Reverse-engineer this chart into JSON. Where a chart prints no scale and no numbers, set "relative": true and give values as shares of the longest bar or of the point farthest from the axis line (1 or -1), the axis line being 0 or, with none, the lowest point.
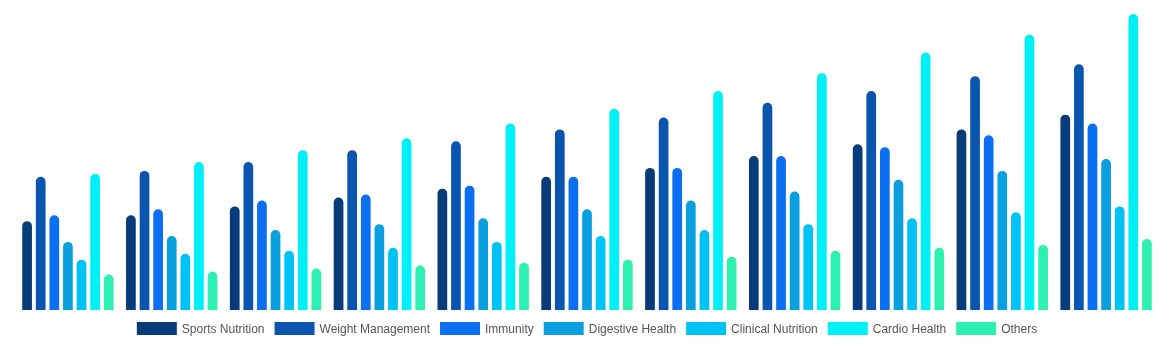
{
  "chart_data": {
    "type": "bar",
    "relative": true,
    "categories": [
      null,
      null,
      null,
      null,
      null,
      null,
      null,
      null,
      null,
      null,
      null
    ],
    "legend": "bottom",
    "series": [
      {
        "name": "Sports Nutrition",
        "color": "#073b7a",
        "values": [
          0.3,
          0.32,
          0.35,
          0.38,
          0.41,
          0.45,
          0.48,
          0.52,
          0.56,
          0.61,
          0.66
        ]
      },
      {
        "name": "Weight Management",
        "color": "#0a55ad",
        "values": [
          0.45,
          0.47,
          0.5,
          0.54,
          0.57,
          0.61,
          0.65,
          0.7,
          0.74,
          0.79,
          0.83
        ]
      },
      {
        "name": "Immunity",
        "color": "#0a6ff0",
        "values": [
          0.32,
          0.34,
          0.37,
          0.39,
          0.42,
          0.45,
          0.48,
          0.52,
          0.55,
          0.59,
          0.63
        ]
      },
      {
        "name": "Digestive Health",
        "color": "#0aa0e0",
        "values": [
          0.23,
          0.25,
          0.27,
          0.29,
          0.31,
          0.34,
          0.37,
          0.4,
          0.44,
          0.47,
          0.51
        ]
      },
      {
        "name": "Clinical Nutrition",
        "color": "#00c3f5",
        "values": [
          0.17,
          0.19,
          0.2,
          0.21,
          0.23,
          0.25,
          0.27,
          0.29,
          0.31,
          0.33,
          0.35
        ]
      },
      {
        "name": "Cardio Health",
        "color": "#00f0f8",
        "values": [
          0.46,
          0.5,
          0.54,
          0.58,
          0.63,
          0.68,
          0.74,
          0.8,
          0.87,
          0.93,
          1
        ]
      },
      {
        "name": "Others",
        "color": "#2ef0b0",
        "values": [
          0.12,
          0.13,
          0.14,
          0.15,
          0.16,
          0.17,
          0.18,
          0.2,
          0.21,
          0.22,
          0.24
        ]
      }
    ]
  }
}
